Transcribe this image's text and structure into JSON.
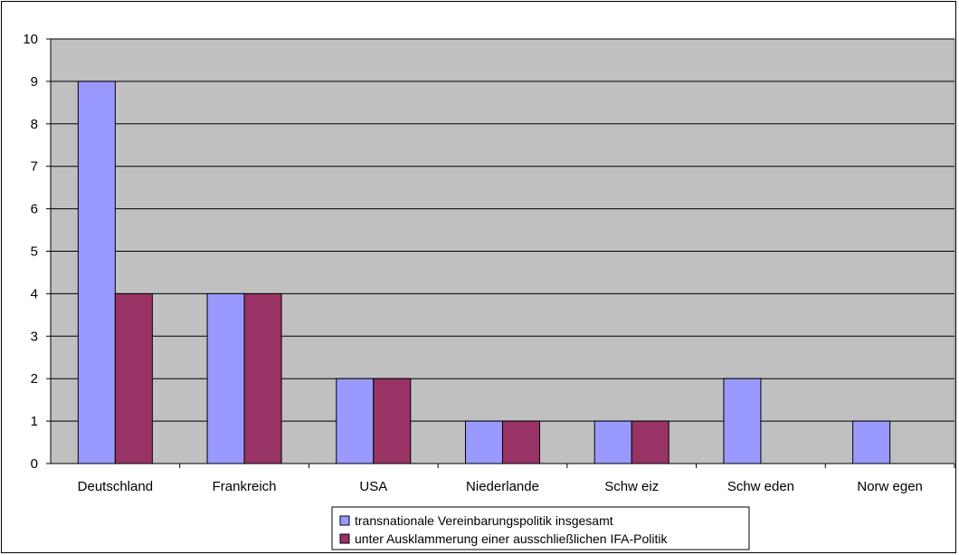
{
  "chart_data": {
    "type": "bar",
    "title": "",
    "xlabel": "",
    "ylabel": "",
    "ylim": [
      0,
      10
    ],
    "yticks": [
      0,
      1,
      2,
      3,
      4,
      5,
      6,
      7,
      8,
      9,
      10
    ],
    "grid": true,
    "legend_position": "bottom",
    "categories": [
      "Deutschland",
      "Frankreich",
      "USA",
      "Niederlande",
      "Schw eiz",
      "Schw eden",
      "Norw egen"
    ],
    "series": [
      {
        "name": "transnationale Vereinbarungspolitik insgesamt",
        "values": [
          9,
          4,
          2,
          1,
          1,
          2,
          1
        ],
        "color": "#9999ff"
      },
      {
        "name": "unter Ausklammerung einer ausschließlichen IFA-Politik",
        "values": [
          4,
          4,
          2,
          1,
          1,
          0,
          0
        ],
        "color": "#993366"
      }
    ],
    "plot_background": "#c0c0c0"
  }
}
